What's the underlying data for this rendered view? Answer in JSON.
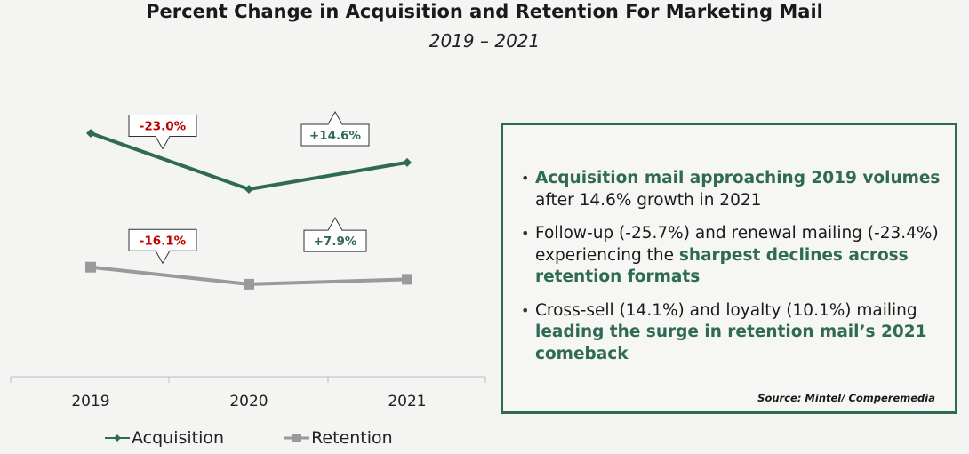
{
  "title": "Percent Change in Acquisition and Retention For Marketing Mail",
  "subtitle": "2019 – 2021",
  "colors": {
    "acquisition": "#2f6a55",
    "retention": "#9a9a9a",
    "negative": "#c00000",
    "positive": "#2f6a55",
    "panel_border": "#2f6a55"
  },
  "chart_data": {
    "type": "line",
    "categories": [
      "2019",
      "2020",
      "2021"
    ],
    "series": [
      {
        "name": "Acquisition",
        "values": [
          10,
          7.7,
          8.8
        ],
        "marker": "diamond"
      },
      {
        "name": "Retention",
        "values": [
          4.5,
          3.8,
          4.0
        ],
        "marker": "square"
      }
    ],
    "annotations": [
      {
        "series": 0,
        "between": [
          0,
          1
        ],
        "text": "-23.0%",
        "kind": "negative"
      },
      {
        "series": 0,
        "between": [
          1,
          2
        ],
        "text": "+14.6%",
        "kind": "positive"
      },
      {
        "series": 1,
        "between": [
          0,
          1
        ],
        "text": "-16.1%",
        "kind": "negative"
      },
      {
        "series": 1,
        "between": [
          1,
          2
        ],
        "text": "+7.9%",
        "kind": "positive"
      }
    ],
    "legend": "bottom",
    "grid": false
  },
  "legend_items": [
    "Acquisition",
    "Retention"
  ],
  "panel": {
    "bullet1": {
      "hl": "Acquisition mail approaching 2019 volumes",
      "rest": " after 14.6% growth in 2021"
    },
    "bullet2": {
      "pre": "Follow-up (-25.7%) and renewal mailing (-23.4%) experiencing the ",
      "hl": "sharpest declines across retention formats"
    },
    "bullet3": {
      "pre": "Cross-sell (14.1%) and loyalty (10.1%) mailing ",
      "hl": "leading the surge in retention mail’s 2021 comeback"
    },
    "source": "Source: Mintel/ Comperemedia"
  }
}
